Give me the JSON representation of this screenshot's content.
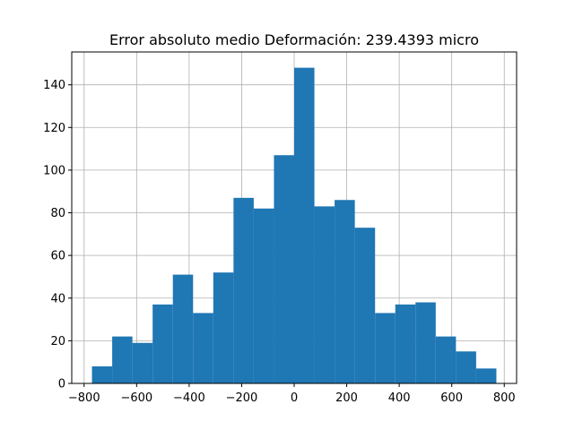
{
  "chart_data": {
    "type": "bar",
    "title": "Error absoluto medio Deformación: 239.4393 micro",
    "xlabel": "",
    "ylabel": "",
    "bins": [
      {
        "x0": -770,
        "x1": -693,
        "count": 8
      },
      {
        "x0": -693,
        "x1": -616,
        "count": 22
      },
      {
        "x0": -616,
        "x1": -539,
        "count": 19
      },
      {
        "x0": -539,
        "x1": -462,
        "count": 37
      },
      {
        "x0": -462,
        "x1": -385,
        "count": 51
      },
      {
        "x0": -385,
        "x1": -308,
        "count": 33
      },
      {
        "x0": -308,
        "x1": -231,
        "count": 52
      },
      {
        "x0": -231,
        "x1": -154,
        "count": 87
      },
      {
        "x0": -154,
        "x1": -77,
        "count": 82
      },
      {
        "x0": -77,
        "x1": 0,
        "count": 107
      },
      {
        "x0": 0,
        "x1": 77,
        "count": 148
      },
      {
        "x0": 77,
        "x1": 154,
        "count": 83
      },
      {
        "x0": 154,
        "x1": 231,
        "count": 86
      },
      {
        "x0": 231,
        "x1": 308,
        "count": 73
      },
      {
        "x0": 308,
        "x1": 385,
        "count": 33
      },
      {
        "x0": 385,
        "x1": 462,
        "count": 37
      },
      {
        "x0": 462,
        "x1": 539,
        "count": 38
      },
      {
        "x0": 539,
        "x1": 616,
        "count": 22
      },
      {
        "x0": 616,
        "x1": 693,
        "count": 15
      },
      {
        "x0": 693,
        "x1": 770,
        "count": 7
      }
    ],
    "xlim": [
      -847,
      847
    ],
    "ylim": [
      0,
      155.4
    ],
    "xticks": [
      "−800",
      "−600",
      "−400",
      "−200",
      "0",
      "200",
      "400",
      "600",
      "800"
    ],
    "xtick_values": [
      -800,
      -600,
      -400,
      -200,
      0,
      200,
      400,
      600,
      800
    ],
    "yticks": [
      "0",
      "20",
      "40",
      "60",
      "80",
      "100",
      "120",
      "140"
    ],
    "ytick_values": [
      0,
      20,
      40,
      60,
      80,
      100,
      120,
      140
    ],
    "grid": true,
    "colors": {
      "bar": "#1f77b4",
      "grid": "#b0b0b0",
      "axes": "#000000"
    }
  }
}
